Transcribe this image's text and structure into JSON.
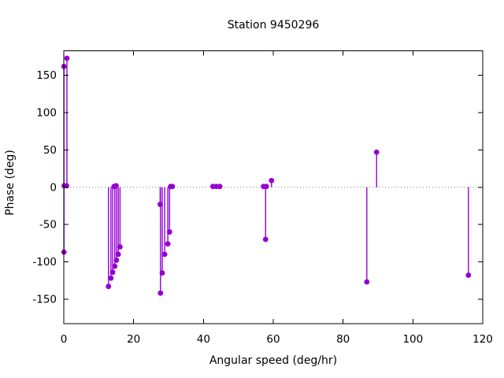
{
  "title": "Station 9450296",
  "colors": {
    "series": "#9400d3",
    "zero_line": "#808080",
    "frame": "#000000",
    "text": "#000000",
    "background": "#ffffff"
  },
  "chart_data": {
    "type": "scatter",
    "subtype": "impulses-with-points (stem plot)",
    "title": "Station 9450296",
    "xlabel": "Angular speed (deg/hr)",
    "ylabel": "Phase (deg)",
    "xlim": [
      0,
      120
    ],
    "ylim": [
      -183,
      183
    ],
    "xticks": [
      0,
      20,
      40,
      60,
      80,
      100,
      120
    ],
    "yticks": [
      -150,
      -100,
      -50,
      0,
      50,
      100,
      150
    ],
    "grid": "dotted zero line only",
    "legend": "none",
    "series_name": "phase",
    "points": [
      {
        "x": 0.04,
        "y": 162
      },
      {
        "x": 0.9,
        "y": 173
      },
      {
        "x": 0.1,
        "y": 2
      },
      {
        "x": 0.8,
        "y": 2
      },
      {
        "x": 0.05,
        "y": -87
      },
      {
        "x": 12.8,
        "y": -133
      },
      {
        "x": 13.5,
        "y": -122
      },
      {
        "x": 14.0,
        "y": -114
      },
      {
        "x": 14.6,
        "y": -106
      },
      {
        "x": 14.4,
        "y": 1
      },
      {
        "x": 15.0,
        "y": 2
      },
      {
        "x": 15.1,
        "y": -98
      },
      {
        "x": 15.6,
        "y": -90
      },
      {
        "x": 16.1,
        "y": -80
      },
      {
        "x": 27.6,
        "y": -23
      },
      {
        "x": 27.7,
        "y": -142
      },
      {
        "x": 28.2,
        "y": -115
      },
      {
        "x": 28.9,
        "y": -90
      },
      {
        "x": 29.8,
        "y": -76
      },
      {
        "x": 30.3,
        "y": -60
      },
      {
        "x": 30.6,
        "y": 1
      },
      {
        "x": 31.1,
        "y": 1
      },
      {
        "x": 42.7,
        "y": 1
      },
      {
        "x": 43.7,
        "y": 1
      },
      {
        "x": 44.7,
        "y": 1
      },
      {
        "x": 57.2,
        "y": 1
      },
      {
        "x": 57.8,
        "y": -70
      },
      {
        "x": 58.0,
        "y": 1
      },
      {
        "x": 59.5,
        "y": 9
      },
      {
        "x": 86.8,
        "y": -127
      },
      {
        "x": 89.6,
        "y": 47
      },
      {
        "x": 115.9,
        "y": -118
      }
    ]
  }
}
